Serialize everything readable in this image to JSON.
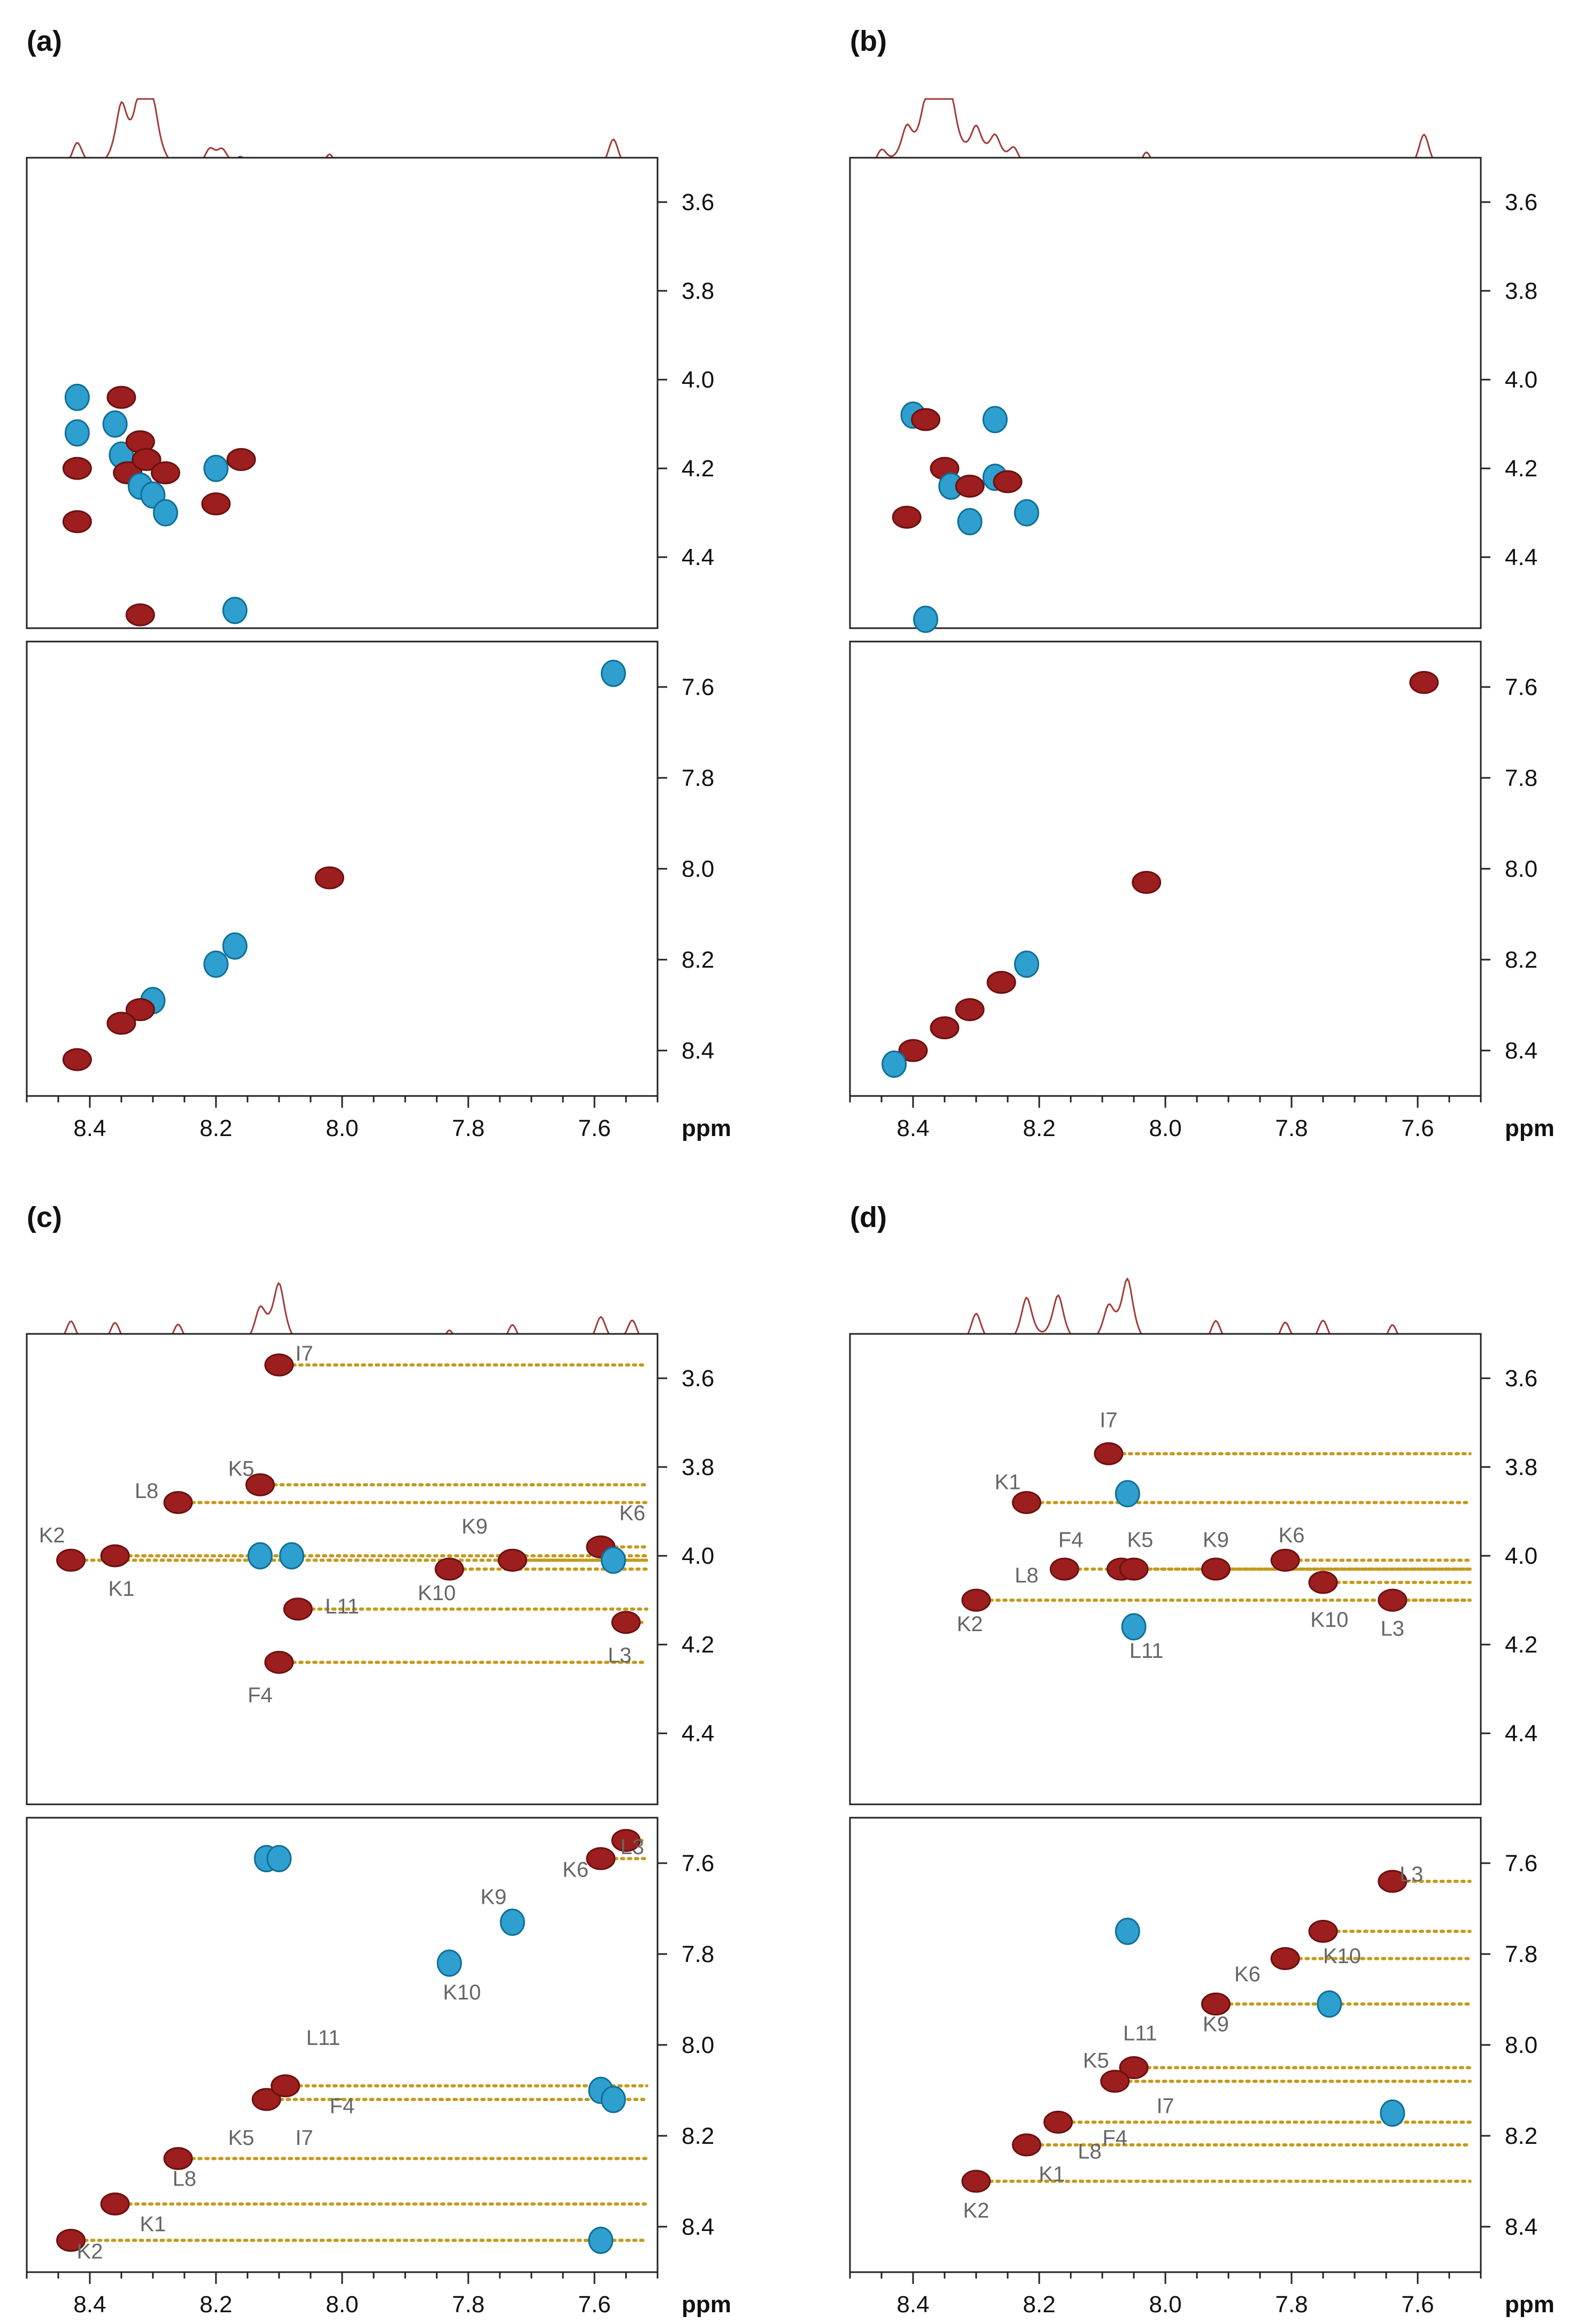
{
  "figure": {
    "unit_label": "ppm",
    "colors": {
      "trace": "#a23a3a",
      "negative_peak": "#2e9fcf",
      "positive_peak": "#9c1e1e",
      "connector": "#c49a1c"
    }
  },
  "chart_data": [
    {
      "type": "scatter",
      "panel": "(a)",
      "title": "(a)",
      "xlabel": "ppm",
      "x_ticks": [
        8.4,
        8.2,
        8.0,
        7.8,
        7.6
      ],
      "xlim": [
        8.5,
        7.5
      ],
      "spectrum_1d": [
        [
          8.42,
          0.45
        ],
        [
          8.35,
          0.9
        ],
        [
          8.32,
          1.0
        ],
        [
          8.3,
          0.85
        ],
        [
          8.21,
          0.3
        ],
        [
          8.19,
          0.28
        ],
        [
          8.16,
          0.22
        ],
        [
          8.02,
          0.32
        ],
        [
          7.57,
          0.55
        ]
      ],
      "top": {
        "yticks": [
          3.6,
          3.8,
          4.0,
          4.2,
          4.4
        ],
        "ylim": [
          3.5,
          4.56
        ],
        "peaks": [
          {
            "x": 8.42,
            "y": 4.04,
            "color": "blue"
          },
          {
            "x": 8.42,
            "y": 4.12,
            "color": "blue"
          },
          {
            "x": 8.42,
            "y": 4.2,
            "color": "red"
          },
          {
            "x": 8.42,
            "y": 4.32,
            "color": "red"
          },
          {
            "x": 8.36,
            "y": 4.1,
            "color": "blue"
          },
          {
            "x": 8.35,
            "y": 4.04,
            "color": "red"
          },
          {
            "x": 8.35,
            "y": 4.17,
            "color": "blue"
          },
          {
            "x": 8.34,
            "y": 4.21,
            "color": "red"
          },
          {
            "x": 8.32,
            "y": 4.14,
            "color": "red"
          },
          {
            "x": 8.32,
            "y": 4.24,
            "color": "blue"
          },
          {
            "x": 8.31,
            "y": 4.18,
            "color": "red"
          },
          {
            "x": 8.3,
            "y": 4.26,
            "color": "blue"
          },
          {
            "x": 8.28,
            "y": 4.3,
            "color": "blue"
          },
          {
            "x": 8.28,
            "y": 4.21,
            "color": "red"
          },
          {
            "x": 8.2,
            "y": 4.2,
            "color": "blue"
          },
          {
            "x": 8.2,
            "y": 4.28,
            "color": "red"
          },
          {
            "x": 8.16,
            "y": 4.18,
            "color": "red"
          },
          {
            "x": 8.32,
            "y": 4.53,
            "color": "red"
          },
          {
            "x": 8.17,
            "y": 4.52,
            "color": "blue"
          }
        ]
      },
      "bottom": {
        "yticks": [
          7.6,
          7.8,
          8.0,
          8.2,
          8.4
        ],
        "ylim": [
          7.5,
          8.5
        ],
        "peaks": [
          {
            "x": 7.57,
            "y": 7.57,
            "color": "blue"
          },
          {
            "x": 8.02,
            "y": 8.02,
            "color": "red"
          },
          {
            "x": 8.2,
            "y": 8.21,
            "color": "blue"
          },
          {
            "x": 8.17,
            "y": 8.17,
            "color": "blue"
          },
          {
            "x": 8.3,
            "y": 8.29,
            "color": "blue"
          },
          {
            "x": 8.32,
            "y": 8.31,
            "color": "red"
          },
          {
            "x": 8.35,
            "y": 8.34,
            "color": "red"
          },
          {
            "x": 8.42,
            "y": 8.42,
            "color": "red"
          }
        ]
      }
    },
    {
      "type": "scatter",
      "panel": "(b)",
      "title": "(b)",
      "xlabel": "ppm",
      "x_ticks": [
        8.4,
        8.2,
        8.0,
        7.8,
        7.6
      ],
      "xlim": [
        8.5,
        7.5
      ],
      "spectrum_1d": [
        [
          8.45,
          0.3
        ],
        [
          8.41,
          0.55
        ],
        [
          8.38,
          0.75
        ],
        [
          8.36,
          1.0
        ],
        [
          8.34,
          0.85
        ],
        [
          8.3,
          0.55
        ],
        [
          8.27,
          0.45
        ],
        [
          8.24,
          0.32
        ],
        [
          8.03,
          0.35
        ],
        [
          7.59,
          0.62
        ]
      ],
      "top": {
        "yticks": [
          3.6,
          3.8,
          4.0,
          4.2,
          4.4
        ],
        "ylim": [
          3.5,
          4.56
        ],
        "peaks": [
          {
            "x": 8.4,
            "y": 4.08,
            "color": "blue"
          },
          {
            "x": 8.38,
            "y": 4.09,
            "color": "red"
          },
          {
            "x": 8.27,
            "y": 4.09,
            "color": "blue"
          },
          {
            "x": 8.35,
            "y": 4.2,
            "color": "red"
          },
          {
            "x": 8.34,
            "y": 4.24,
            "color": "blue"
          },
          {
            "x": 8.31,
            "y": 4.24,
            "color": "red"
          },
          {
            "x": 8.27,
            "y": 4.22,
            "color": "blue"
          },
          {
            "x": 8.25,
            "y": 4.23,
            "color": "red"
          },
          {
            "x": 8.22,
            "y": 4.3,
            "color": "blue"
          },
          {
            "x": 8.41,
            "y": 4.31,
            "color": "red"
          },
          {
            "x": 8.31,
            "y": 4.32,
            "color": "blue"
          },
          {
            "x": 8.38,
            "y": 4.54,
            "color": "blue"
          }
        ]
      },
      "bottom": {
        "yticks": [
          7.6,
          7.8,
          8.0,
          8.2,
          8.4
        ],
        "ylim": [
          7.5,
          8.5
        ],
        "peaks": [
          {
            "x": 7.59,
            "y": 7.59,
            "color": "red"
          },
          {
            "x": 8.03,
            "y": 8.03,
            "color": "red"
          },
          {
            "x": 8.22,
            "y": 8.21,
            "color": "blue"
          },
          {
            "x": 8.26,
            "y": 8.25,
            "color": "red"
          },
          {
            "x": 8.31,
            "y": 8.31,
            "color": "red"
          },
          {
            "x": 8.35,
            "y": 8.35,
            "color": "red"
          },
          {
            "x": 8.4,
            "y": 8.4,
            "color": "red"
          },
          {
            "x": 8.43,
            "y": 8.43,
            "color": "blue"
          }
        ]
      }
    },
    {
      "type": "scatter",
      "panel": "(c)",
      "title": "(c)",
      "xlabel": "ppm",
      "x_ticks": [
        8.4,
        8.2,
        8.0,
        7.8,
        7.6
      ],
      "xlim": [
        8.5,
        7.5
      ],
      "spectrum_1d": [
        [
          8.43,
          0.45
        ],
        [
          8.36,
          0.42
        ],
        [
          8.26,
          0.4
        ],
        [
          8.13,
          0.55
        ],
        [
          8.1,
          0.95
        ],
        [
          7.83,
          0.32
        ],
        [
          7.73,
          0.4
        ],
        [
          7.59,
          0.5
        ],
        [
          7.54,
          0.45
        ]
      ],
      "top": {
        "yticks": [
          3.6,
          3.8,
          4.0,
          4.2,
          4.4
        ],
        "ylim": [
          3.5,
          4.56
        ],
        "peaks": [
          {
            "x": 8.1,
            "y": 3.57,
            "color": "red"
          },
          {
            "x": 8.26,
            "y": 3.88,
            "color": "red"
          },
          {
            "x": 8.13,
            "y": 3.84,
            "color": "red"
          },
          {
            "x": 8.43,
            "y": 4.01,
            "color": "red"
          },
          {
            "x": 8.36,
            "y": 4.0,
            "color": "red"
          },
          {
            "x": 7.83,
            "y": 4.03,
            "color": "red"
          },
          {
            "x": 7.73,
            "y": 4.01,
            "color": "red"
          },
          {
            "x": 7.59,
            "y": 3.98,
            "color": "red"
          },
          {
            "x": 8.07,
            "y": 4.12,
            "color": "red"
          },
          {
            "x": 7.55,
            "y": 4.15,
            "color": "red"
          },
          {
            "x": 8.1,
            "y": 4.24,
            "color": "red"
          },
          {
            "x": 8.13,
            "y": 4.0,
            "color": "blue"
          },
          {
            "x": 8.08,
            "y": 4.0,
            "color": "blue"
          },
          {
            "x": 7.57,
            "y": 4.01,
            "color": "blue"
          }
        ],
        "labels": [
          {
            "text": "I7",
            "x": 8.06,
            "y": 3.56
          },
          {
            "text": "K5",
            "x": 8.16,
            "y": 3.82
          },
          {
            "text": "L8",
            "x": 8.31,
            "y": 3.87
          },
          {
            "text": "K9",
            "x": 7.79,
            "y": 3.95
          },
          {
            "text": "K6",
            "x": 7.54,
            "y": 3.92
          },
          {
            "text": "K2",
            "x": 8.46,
            "y": 3.97
          },
          {
            "text": "K1",
            "x": 8.35,
            "y": 4.09
          },
          {
            "text": "K10",
            "x": 7.85,
            "y": 4.1
          },
          {
            "text": "L11",
            "x": 8.0,
            "y": 4.13
          },
          {
            "text": "L3",
            "x": 7.56,
            "y": 4.24
          },
          {
            "text": "F4",
            "x": 8.13,
            "y": 4.33
          }
        ]
      },
      "bottom": {
        "yticks": [
          7.6,
          7.8,
          8.0,
          8.2,
          8.4
        ],
        "ylim": [
          7.5,
          8.5
        ],
        "peaks": [
          {
            "x": 8.43,
            "y": 8.43,
            "color": "red"
          },
          {
            "x": 8.36,
            "y": 8.35,
            "color": "red"
          },
          {
            "x": 8.26,
            "y": 8.25,
            "color": "red"
          },
          {
            "x": 8.12,
            "y": 8.12,
            "color": "red"
          },
          {
            "x": 8.09,
            "y": 8.09,
            "color": "red"
          },
          {
            "x": 7.83,
            "y": 7.82,
            "color": "blue"
          },
          {
            "x": 7.73,
            "y": 7.73,
            "color": "blue"
          },
          {
            "x": 7.59,
            "y": 7.59,
            "color": "red"
          },
          {
            "x": 7.55,
            "y": 7.55,
            "color": "red"
          },
          {
            "x": 8.12,
            "y": 7.59,
            "color": "blue"
          },
          {
            "x": 8.1,
            "y": 7.59,
            "color": "blue"
          },
          {
            "x": 7.59,
            "y": 8.1,
            "color": "blue"
          },
          {
            "x": 7.57,
            "y": 8.12,
            "color": "blue"
          },
          {
            "x": 7.59,
            "y": 8.43,
            "color": "blue"
          }
        ],
        "labels": [
          {
            "text": "K9",
            "x": 7.76,
            "y": 7.69
          },
          {
            "text": "K6",
            "x": 7.63,
            "y": 7.63
          },
          {
            "text": "L3",
            "x": 7.54,
            "y": 7.58
          },
          {
            "text": "K10",
            "x": 7.81,
            "y": 7.9
          },
          {
            "text": "L11",
            "x": 8.03,
            "y": 8.0
          },
          {
            "text": "F4",
            "x": 8.0,
            "y": 8.15
          },
          {
            "text": "I7",
            "x": 8.06,
            "y": 8.22
          },
          {
            "text": "K5",
            "x": 8.16,
            "y": 8.22
          },
          {
            "text": "L8",
            "x": 8.25,
            "y": 8.31
          },
          {
            "text": "K1",
            "x": 8.3,
            "y": 8.41
          },
          {
            "text": "K2",
            "x": 8.4,
            "y": 8.47
          }
        ]
      }
    },
    {
      "type": "scatter",
      "panel": "(d)",
      "title": "(d)",
      "xlabel": "ppm",
      "x_ticks": [
        8.4,
        8.2,
        8.0,
        7.8,
        7.6
      ],
      "xlim": [
        8.5,
        7.5
      ],
      "spectrum_1d": [
        [
          8.3,
          0.55
        ],
        [
          8.22,
          0.75
        ],
        [
          8.17,
          0.78
        ],
        [
          8.09,
          0.55
        ],
        [
          8.06,
          1.0
        ],
        [
          7.92,
          0.45
        ],
        [
          7.81,
          0.42
        ],
        [
          7.75,
          0.45
        ],
        [
          7.64,
          0.4
        ]
      ],
      "top": {
        "yticks": [
          3.6,
          3.8,
          4.0,
          4.2,
          4.4
        ],
        "ylim": [
          3.5,
          4.56
        ],
        "peaks": [
          {
            "x": 8.09,
            "y": 3.77,
            "color": "red"
          },
          {
            "x": 8.22,
            "y": 3.88,
            "color": "red"
          },
          {
            "x": 8.16,
            "y": 4.03,
            "color": "red"
          },
          {
            "x": 8.07,
            "y": 4.03,
            "color": "red"
          },
          {
            "x": 8.05,
            "y": 4.03,
            "color": "red"
          },
          {
            "x": 7.92,
            "y": 4.03,
            "color": "red"
          },
          {
            "x": 7.81,
            "y": 4.01,
            "color": "red"
          },
          {
            "x": 7.75,
            "y": 4.06,
            "color": "red"
          },
          {
            "x": 7.64,
            "y": 4.1,
            "color": "red"
          },
          {
            "x": 8.3,
            "y": 4.1,
            "color": "red"
          },
          {
            "x": 8.05,
            "y": 4.16,
            "color": "blue"
          },
          {
            "x": 8.06,
            "y": 3.86,
            "color": "blue"
          }
        ],
        "labels": [
          {
            "text": "I7",
            "x": 8.09,
            "y": 3.71
          },
          {
            "text": "K1",
            "x": 8.25,
            "y": 3.85
          },
          {
            "text": "F4",
            "x": 8.15,
            "y": 3.98
          },
          {
            "text": "K5",
            "x": 8.04,
            "y": 3.98
          },
          {
            "text": "K9",
            "x": 7.92,
            "y": 3.98
          },
          {
            "text": "K6",
            "x": 7.8,
            "y": 3.97
          },
          {
            "text": "L8",
            "x": 8.22,
            "y": 4.06
          },
          {
            "text": "K2",
            "x": 8.31,
            "y": 4.17
          },
          {
            "text": "L11",
            "x": 8.03,
            "y": 4.23
          },
          {
            "text": "K10",
            "x": 7.74,
            "y": 4.16
          },
          {
            "text": "L3",
            "x": 7.64,
            "y": 4.18
          }
        ]
      },
      "bottom": {
        "yticks": [
          7.6,
          7.8,
          8.0,
          8.2,
          8.4
        ],
        "ylim": [
          7.5,
          8.5
        ],
        "peaks": [
          {
            "x": 7.64,
            "y": 7.64,
            "color": "red"
          },
          {
            "x": 7.75,
            "y": 7.75,
            "color": "red"
          },
          {
            "x": 7.81,
            "y": 7.81,
            "color": "red"
          },
          {
            "x": 7.92,
            "y": 7.91,
            "color": "red"
          },
          {
            "x": 8.05,
            "y": 8.05,
            "color": "red"
          },
          {
            "x": 8.08,
            "y": 8.08,
            "color": "red"
          },
          {
            "x": 8.17,
            "y": 8.17,
            "color": "red"
          },
          {
            "x": 8.22,
            "y": 8.22,
            "color": "red"
          },
          {
            "x": 8.3,
            "y": 8.3,
            "color": "red"
          },
          {
            "x": 8.06,
            "y": 7.75,
            "color": "blue"
          },
          {
            "x": 7.74,
            "y": 7.91,
            "color": "blue"
          },
          {
            "x": 7.64,
            "y": 8.15,
            "color": "blue"
          }
        ],
        "labels": [
          {
            "text": "L3",
            "x": 7.61,
            "y": 7.64
          },
          {
            "text": "K10",
            "x": 7.72,
            "y": 7.82
          },
          {
            "text": "K6",
            "x": 7.87,
            "y": 7.86
          },
          {
            "text": "K9",
            "x": 7.92,
            "y": 7.97
          },
          {
            "text": "L11",
            "x": 8.04,
            "y": 7.99
          },
          {
            "text": "K5",
            "x": 8.11,
            "y": 8.05
          },
          {
            "text": "I7",
            "x": 8.0,
            "y": 8.15
          },
          {
            "text": "L8",
            "x": 8.12,
            "y": 8.25
          },
          {
            "text": "F4",
            "x": 8.08,
            "y": 8.22
          },
          {
            "text": "K1",
            "x": 8.18,
            "y": 8.3
          },
          {
            "text": "K2",
            "x": 8.3,
            "y": 8.38
          }
        ]
      }
    }
  ]
}
